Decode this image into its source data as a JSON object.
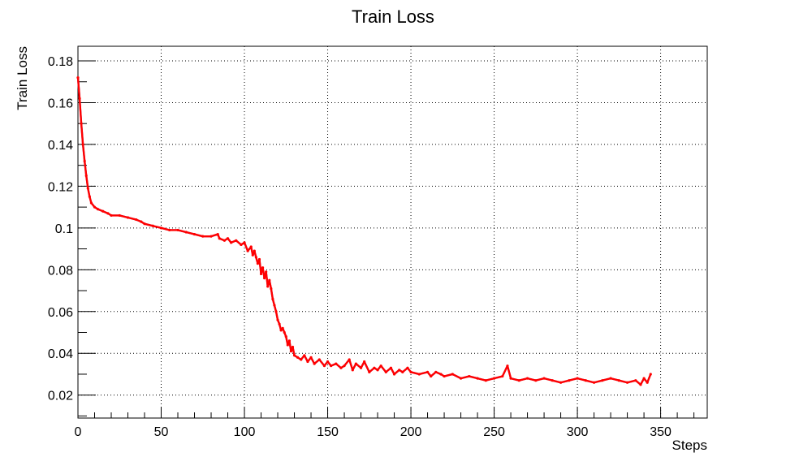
{
  "chart_data": {
    "type": "line",
    "title": "Train Loss",
    "xlabel": "Steps",
    "ylabel": "Train Loss",
    "xlim": [
      0,
      378
    ],
    "ylim": [
      0.009,
      0.187
    ],
    "grid": true,
    "x_ticks": [
      0,
      50,
      100,
      150,
      200,
      250,
      300,
      350
    ],
    "x_tick_labels": [
      "0",
      "50",
      "100",
      "150",
      "200",
      "250",
      "300",
      "350"
    ],
    "y_ticks": [
      0.02,
      0.04,
      0.06,
      0.08,
      0.1,
      0.12,
      0.14,
      0.16,
      0.18
    ],
    "y_tick_labels": [
      "0.02",
      "0.04",
      "0.06",
      "0.08",
      "0.1",
      "0.12",
      "0.14",
      "0.16",
      "0.18"
    ],
    "series": [
      {
        "color": "#ff0000",
        "x": [
          0,
          1,
          2,
          3,
          4,
          5,
          6,
          7,
          8,
          10,
          12,
          15,
          18,
          20,
          25,
          30,
          35,
          38,
          40,
          45,
          50,
          55,
          60,
          65,
          70,
          75,
          80,
          84,
          85,
          88,
          90,
          92,
          95,
          98,
          100,
          102,
          104,
          105,
          106,
          107,
          108,
          109,
          110,
          111,
          112,
          113,
          114,
          115,
          116,
          117,
          118,
          119,
          120,
          121,
          122,
          123,
          124,
          125,
          126,
          127,
          128,
          129,
          130,
          132,
          134,
          136,
          138,
          140,
          142,
          145,
          148,
          150,
          152,
          155,
          158,
          160,
          163,
          165,
          167,
          170,
          172,
          175,
          178,
          180,
          182,
          185,
          188,
          190,
          193,
          195,
          198,
          200,
          205,
          210,
          212,
          215,
          218,
          220,
          225,
          230,
          235,
          240,
          245,
          250,
          255,
          258,
          260,
          265,
          270,
          275,
          280,
          285,
          290,
          295,
          300,
          305,
          310,
          315,
          320,
          325,
          330,
          335,
          338,
          340,
          342,
          344
        ],
        "values": [
          0.172,
          0.162,
          0.15,
          0.14,
          0.132,
          0.125,
          0.119,
          0.115,
          0.112,
          0.11,
          0.109,
          0.108,
          0.107,
          0.106,
          0.106,
          0.105,
          0.104,
          0.103,
          0.102,
          0.101,
          0.1,
          0.099,
          0.099,
          0.098,
          0.097,
          0.096,
          0.096,
          0.097,
          0.095,
          0.094,
          0.095,
          0.093,
          0.094,
          0.092,
          0.093,
          0.089,
          0.091,
          0.087,
          0.089,
          0.086,
          0.083,
          0.085,
          0.078,
          0.081,
          0.076,
          0.079,
          0.072,
          0.075,
          0.071,
          0.066,
          0.063,
          0.06,
          0.056,
          0.054,
          0.051,
          0.052,
          0.05,
          0.048,
          0.044,
          0.046,
          0.041,
          0.043,
          0.039,
          0.038,
          0.037,
          0.039,
          0.036,
          0.038,
          0.035,
          0.037,
          0.034,
          0.036,
          0.034,
          0.035,
          0.033,
          0.034,
          0.037,
          0.032,
          0.035,
          0.033,
          0.036,
          0.031,
          0.033,
          0.032,
          0.034,
          0.031,
          0.033,
          0.03,
          0.032,
          0.031,
          0.033,
          0.031,
          0.03,
          0.031,
          0.029,
          0.031,
          0.03,
          0.029,
          0.03,
          0.028,
          0.029,
          0.028,
          0.027,
          0.028,
          0.029,
          0.034,
          0.028,
          0.027,
          0.028,
          0.027,
          0.028,
          0.027,
          0.026,
          0.027,
          0.028,
          0.027,
          0.026,
          0.027,
          0.028,
          0.027,
          0.026,
          0.027,
          0.025,
          0.028,
          0.026,
          0.03
        ]
      }
    ]
  }
}
